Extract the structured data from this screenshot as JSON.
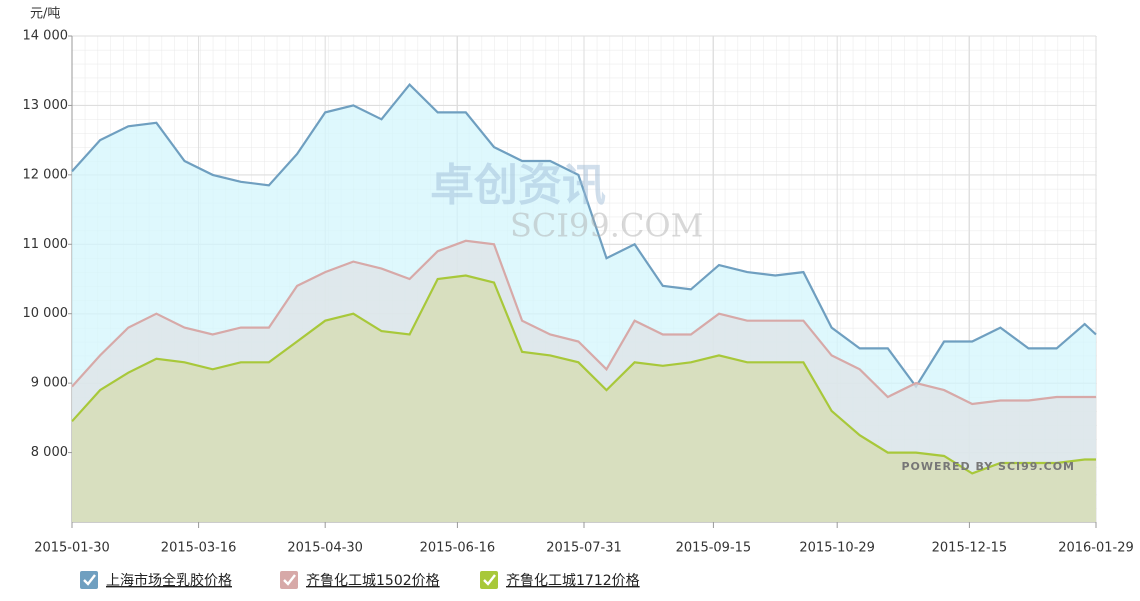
{
  "chart_data": {
    "type": "area",
    "y_label": "元/吨",
    "annotations": [
      "卓创资讯",
      "SCI99.COM",
      "POWERED BY SCI99.COM"
    ],
    "x": [
      "2015-01-30",
      "2015-02-09",
      "2015-02-19",
      "2015-03-01",
      "2015-03-11",
      "2015-03-21",
      "2015-03-31",
      "2015-04-10",
      "2015-04-20",
      "2015-04-30",
      "2015-05-10",
      "2015-05-20",
      "2015-05-30",
      "2015-06-09",
      "2015-06-19",
      "2015-06-29",
      "2015-07-09",
      "2015-07-19",
      "2015-07-29",
      "2015-08-08",
      "2015-08-18",
      "2015-08-28",
      "2015-09-07",
      "2015-09-17",
      "2015-09-27",
      "2015-10-07",
      "2015-10-17",
      "2015-10-27",
      "2015-11-06",
      "2015-11-16",
      "2015-11-26",
      "2015-12-06",
      "2015-12-16",
      "2015-12-26",
      "2016-01-05",
      "2016-01-15",
      "2016-01-25",
      "2016-01-29"
    ],
    "series": [
      {
        "name": "上海市场全乳胶价格",
        "color": "#6f9fc0",
        "fill": "#d3f5fc",
        "values": [
          12050,
          12500,
          12700,
          12750,
          12200,
          12000,
          11900,
          11850,
          12300,
          12900,
          13000,
          12800,
          13300,
          12900,
          12900,
          12400,
          12200,
          12200,
          12000,
          10800,
          11000,
          10400,
          10350,
          10700,
          10600,
          10550,
          10600,
          9800,
          9500,
          9500,
          8950,
          9600,
          9600,
          9800,
          9500,
          9500,
          9850,
          9700
        ]
      },
      {
        "name": "齐鲁化工城1502价格",
        "color": "#d7a9a8",
        "fill": "#dfe3e6",
        "values": [
          8950,
          9400,
          9800,
          10000,
          9800,
          9700,
          9800,
          9800,
          10400,
          10600,
          10750,
          10650,
          10500,
          10900,
          11050,
          11000,
          9900,
          9700,
          9600,
          9200,
          9900,
          9700,
          9700,
          10000,
          9900,
          9900,
          9900,
          9400,
          9200,
          8800,
          9000,
          8900,
          8700,
          8750,
          8750,
          8800,
          8800,
          8800
        ]
      },
      {
        "name": "齐鲁化工城1712价格",
        "color": "#a8c83a",
        "fill": "#d5dcb0",
        "values": [
          8450,
          8900,
          9150,
          9350,
          9300,
          9200,
          9300,
          9300,
          9600,
          9900,
          10000,
          9750,
          9700,
          10500,
          10550,
          10450,
          9450,
          9400,
          9300,
          8900,
          9300,
          9250,
          9300,
          9400,
          9300,
          9300,
          9300,
          8600,
          8250,
          8000,
          8000,
          7950,
          7700,
          7850,
          7850,
          7850,
          7900,
          7900
        ]
      }
    ],
    "xlim": [
      "2015-01-30",
      "2016-01-29"
    ],
    "xticks": [
      "2015-01-30",
      "2015-03-16",
      "2015-04-30",
      "2015-06-16",
      "2015-07-31",
      "2015-09-15",
      "2015-10-29",
      "2015-12-15",
      "2016-01-29"
    ],
    "ylim": [
      7000,
      14000
    ],
    "yticks": [
      {
        "value": 8000,
        "label": "8 000"
      },
      {
        "value": 9000,
        "label": "9 000"
      },
      {
        "value": 10000,
        "label": "10 000"
      },
      {
        "value": 11000,
        "label": "11 000"
      },
      {
        "value": 12000,
        "label": "12 000"
      },
      {
        "value": 13000,
        "label": "13 000"
      },
      {
        "value": 14000,
        "label": "14 000"
      }
    ],
    "grid": true,
    "legend": "bottom"
  }
}
